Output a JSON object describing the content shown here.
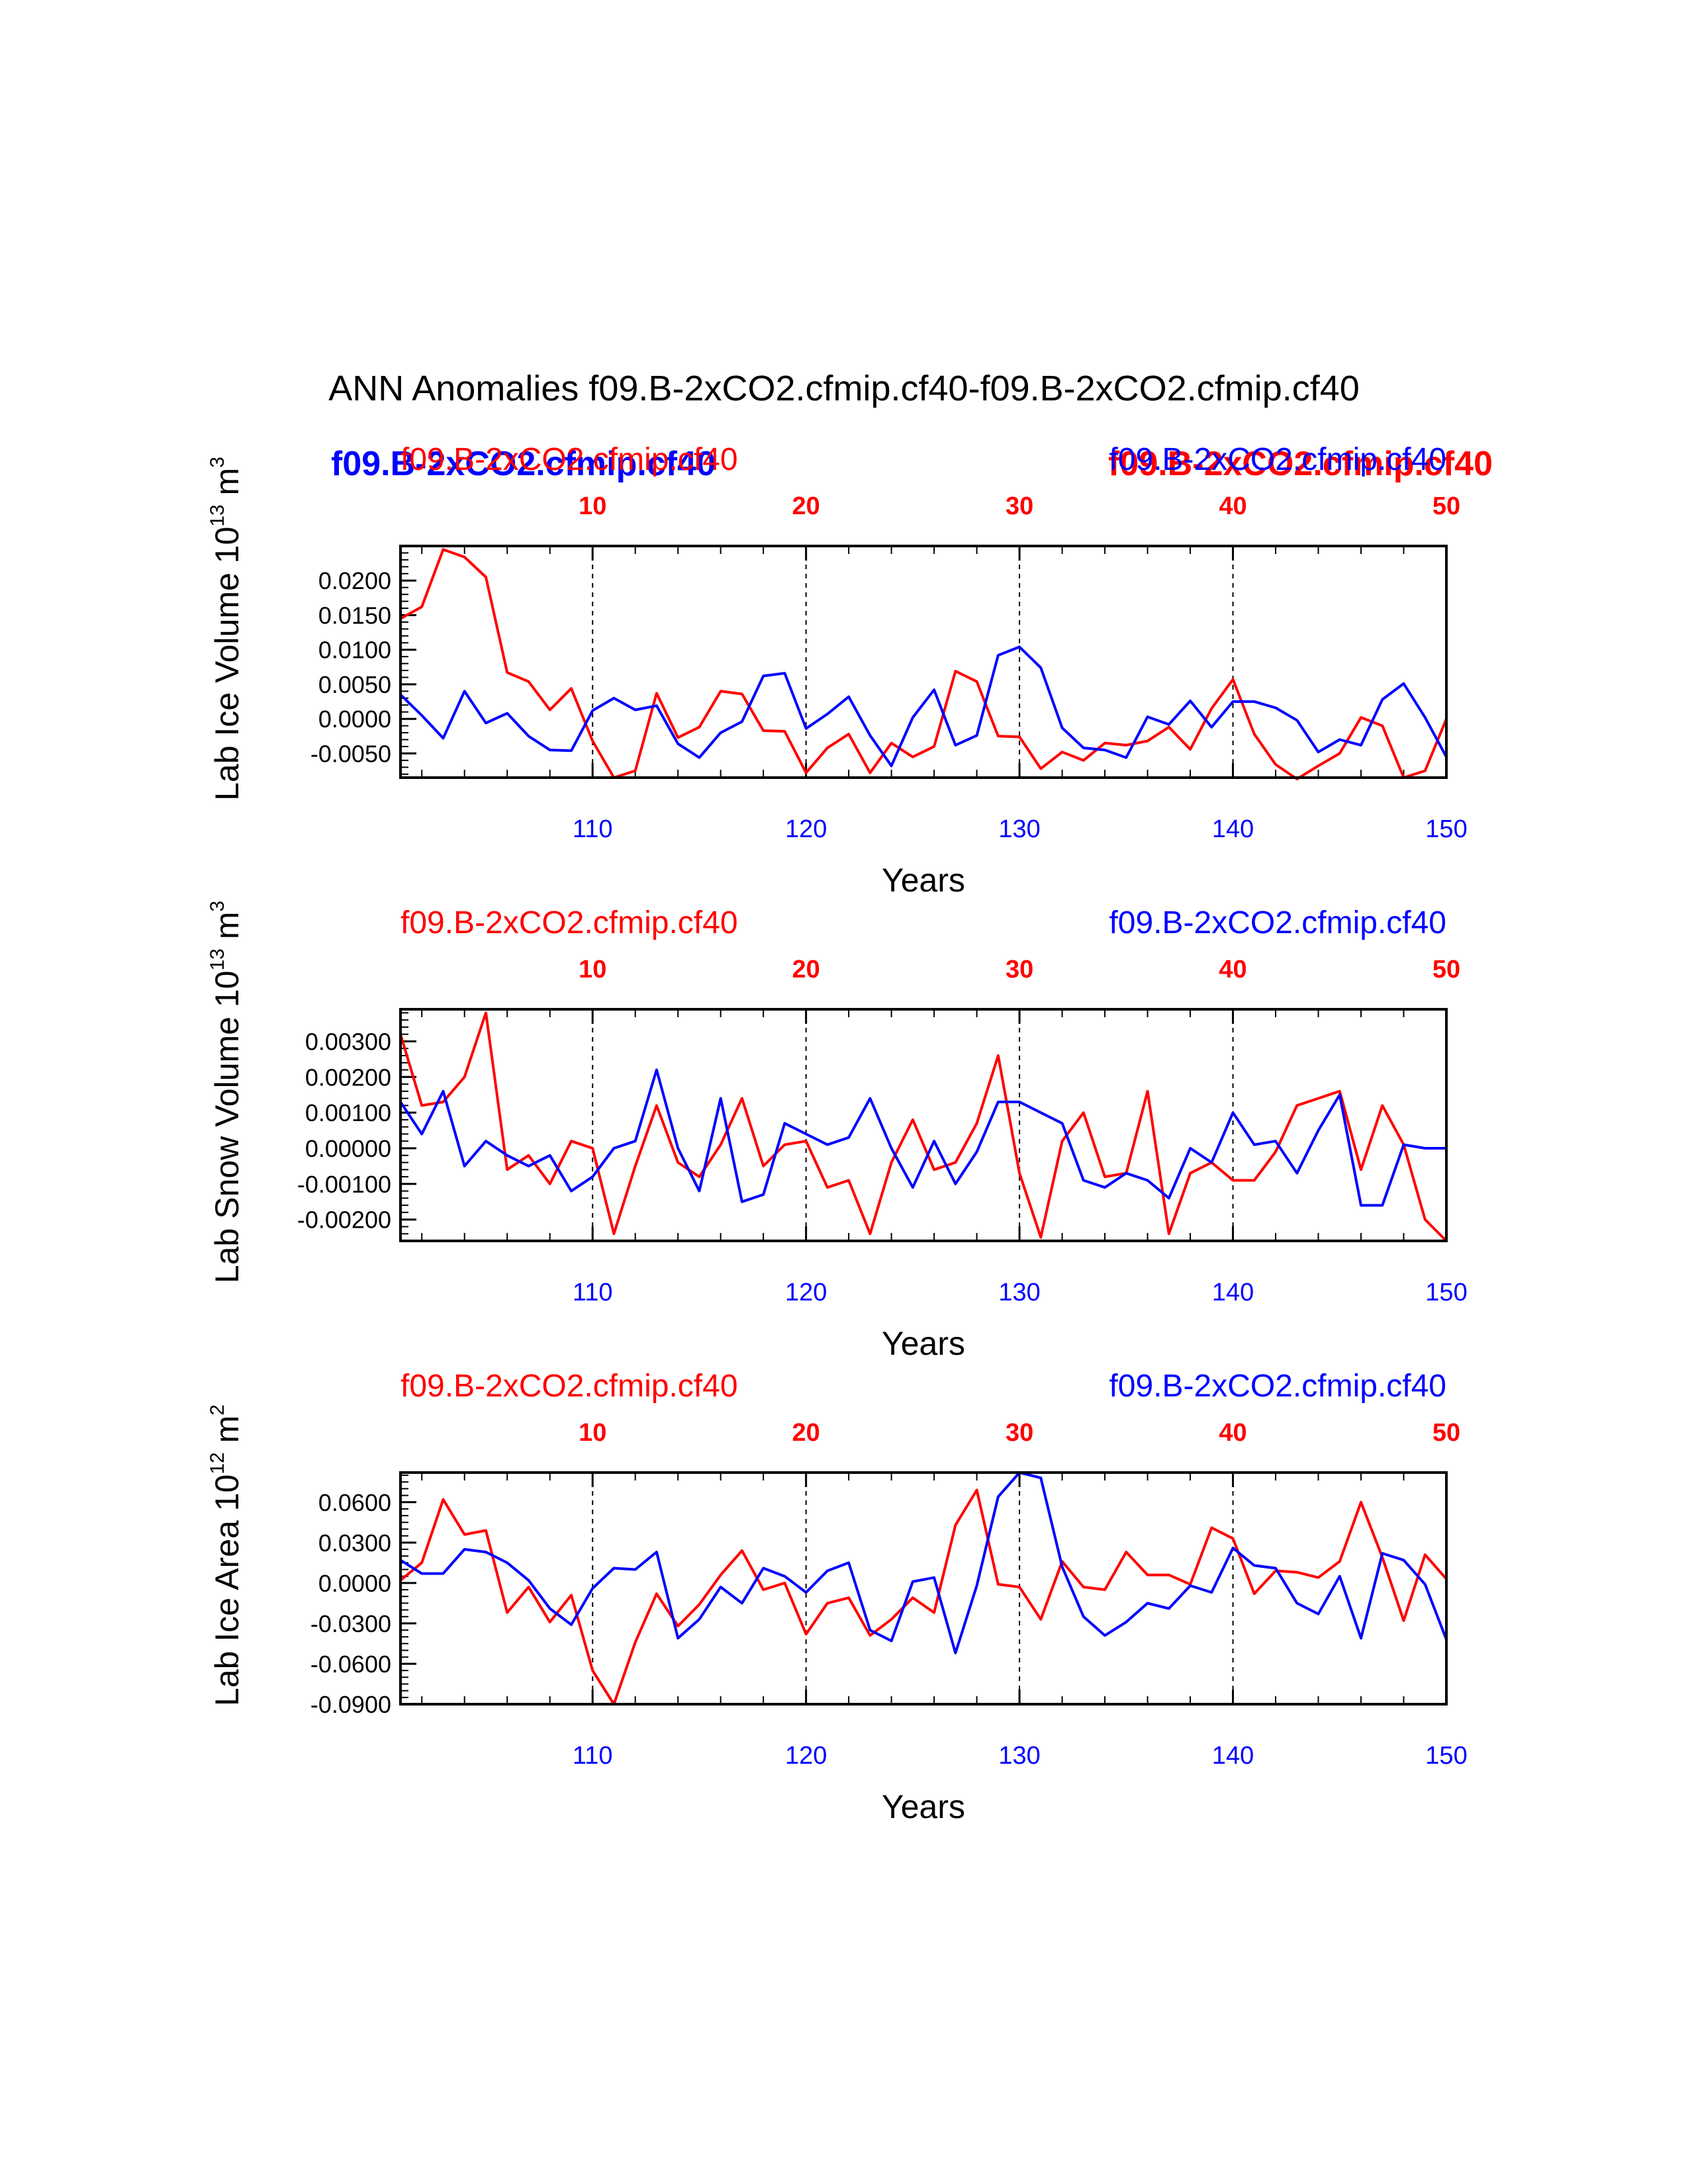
{
  "figure_title": "ANN Anomalies f09.B-2xCO2.cfmip.cf40-f09.B-2xCO2.cfmip.cf40",
  "colors": {
    "red": "#ff0000",
    "blue": "#0000ff",
    "axis": "#000000"
  },
  "header_bold": {
    "left": "f09.B-2xCO2.cfmip.cf40",
    "right": "f09.B-2xCO2.cfmip.cf40"
  },
  "chart_data": [
    {
      "type": "line",
      "ylabel": {
        "prefix": "Lab Ice Volume 10",
        "exp": "13",
        "unit": " m",
        "unit_exp": "3"
      },
      "xlabel": "Years",
      "case_left": "f09.B-2xCO2.cfmip.cf40",
      "case_right": "f09.B-2xCO2.cfmip.cf40",
      "top_axis": {
        "min": 1,
        "max": 50,
        "ticks": [
          "10",
          "20",
          "30",
          "40",
          "50"
        ]
      },
      "bottom_axis": {
        "min": 101,
        "max": 150,
        "ticks": [
          "110",
          "120",
          "130",
          "140",
          "150"
        ]
      },
      "gridlines_at_top": [
        10,
        20,
        30,
        40
      ],
      "ylim": [
        -0.0085,
        0.025
      ],
      "yticks": [
        -0.005,
        0.0,
        0.005,
        0.01,
        0.015,
        0.02
      ],
      "yticklabels": [
        "-0.0050",
        "0.0000",
        "0.0050",
        "0.0100",
        "0.0150",
        "0.0200"
      ],
      "yminor_step": 0.001,
      "series": [
        {
          "name": "f09.B-2xCO2.cfmip.cf40",
          "color": "red",
          "axis": "top",
          "values": [
            0.0145,
            0.0162,
            0.0245,
            0.0234,
            0.0205,
            0.0067,
            0.0054,
            0.0013,
            0.0044,
            -0.0032,
            -0.0085,
            -0.0075,
            0.0037,
            -0.0027,
            -0.0012,
            0.004,
            0.0036,
            -0.0017,
            -0.0018,
            -0.0078,
            -0.0042,
            -0.0022,
            -0.0078,
            -0.0035,
            -0.0055,
            -0.004,
            0.0069,
            0.0054,
            -0.0025,
            -0.0026,
            -0.0072,
            -0.0048,
            -0.006,
            -0.0035,
            -0.0038,
            -0.0032,
            -0.0012,
            -0.0044,
            0.0015,
            0.0057,
            -0.0022,
            -0.0066,
            -0.0087,
            -0.0068,
            -0.005,
            0.0002,
            -0.001,
            -0.0085,
            -0.0075,
            0.0
          ]
        },
        {
          "name": "f09.B-2xCO2.cfmip.cf40",
          "color": "blue",
          "axis": "bottom",
          "values": [
            0.0035,
            0.0005,
            -0.0028,
            0.004,
            -0.0006,
            0.0008,
            -0.0025,
            -0.0045,
            -0.0046,
            0.0012,
            0.003,
            0.0013,
            0.0019,
            -0.0036,
            -0.0056,
            -0.002,
            -0.0004,
            0.0062,
            0.0066,
            -0.0014,
            0.0007,
            0.0032,
            -0.0024,
            -0.0068,
            0.0002,
            0.0042,
            -0.0038,
            -0.0024,
            0.0092,
            0.0104,
            0.0074,
            -0.0013,
            -0.0042,
            -0.0045,
            -0.0056,
            0.0003,
            -0.0008,
            0.0026,
            -0.0012,
            0.0025,
            0.0025,
            0.0016,
            -0.0002,
            -0.0048,
            -0.003,
            -0.0038,
            0.0028,
            0.0051,
            0.0002,
            -0.0055
          ]
        }
      ]
    },
    {
      "type": "line",
      "ylabel": {
        "prefix": "Lab Snow Volume 10",
        "exp": "13",
        "unit": " m",
        "unit_exp": "3"
      },
      "xlabel": "Years",
      "case_left": "f09.B-2xCO2.cfmip.cf40",
      "case_right": "f09.B-2xCO2.cfmip.cf40",
      "top_axis": {
        "min": 1,
        "max": 50,
        "ticks": [
          "10",
          "20",
          "30",
          "40",
          "50"
        ]
      },
      "bottom_axis": {
        "min": 101,
        "max": 150,
        "ticks": [
          "110",
          "120",
          "130",
          "140",
          "150"
        ]
      },
      "gridlines_at_top": [
        10,
        20,
        30,
        40
      ],
      "ylim": [
        -0.0026,
        0.0039
      ],
      "yticks": [
        -0.002,
        -0.001,
        0.0,
        0.001,
        0.002,
        0.003
      ],
      "yticklabels": [
        "-0.00200",
        "-0.00100",
        "0.00000",
        "0.00100",
        "0.00200",
        "0.00300"
      ],
      "yminor_step": 0.0002,
      "series": [
        {
          "name": "f09.B-2xCO2.cfmip.cf40",
          "color": "red",
          "axis": "top",
          "values": [
            0.0032,
            0.0012,
            0.0013,
            0.002,
            0.0038,
            -0.0006,
            -0.0002,
            -0.001,
            0.0002,
            0.0,
            -0.0024,
            -0.0005,
            0.0012,
            -0.0004,
            -0.0008,
            0.0001,
            0.0014,
            -0.0005,
            0.0001,
            0.0002,
            -0.0011,
            -0.0009,
            -0.0024,
            -0.0004,
            0.0008,
            -0.0006,
            -0.0004,
            0.0007,
            0.0026,
            -0.0007,
            -0.0025,
            0.0002,
            0.001,
            -0.0008,
            -0.0007,
            0.0016,
            -0.0024,
            -0.0007,
            -0.0004,
            -0.0009,
            -0.0009,
            -0.0001,
            0.0012,
            0.0014,
            0.0016,
            -0.0006,
            0.0012,
            0.0001,
            -0.002,
            -0.0026
          ]
        },
        {
          "name": "f09.B-2xCO2.cfmip.cf40",
          "color": "blue",
          "axis": "bottom",
          "values": [
            0.0013,
            0.0004,
            0.0016,
            -0.0005,
            0.0002,
            -0.0002,
            -0.0005,
            -0.0002,
            -0.0012,
            -0.0008,
            0.0,
            0.0002,
            0.0022,
            0.0,
            -0.0012,
            0.0014,
            -0.0015,
            -0.0013,
            0.0007,
            0.0004,
            0.0001,
            0.0003,
            0.0014,
            0.0,
            -0.0011,
            0.0002,
            -0.001,
            -0.0001,
            0.0013,
            0.0013,
            0.001,
            0.0007,
            -0.0009,
            -0.0011,
            -0.0007,
            -0.0009,
            -0.0014,
            0.0,
            -0.0004,
            0.001,
            0.0001,
            0.0002,
            -0.0007,
            0.0005,
            0.0015,
            -0.0016,
            -0.0016,
            0.0001,
            0.0,
            -0.0
          ]
        }
      ]
    },
    {
      "type": "line",
      "ylabel": {
        "prefix": "Lab Ice Area 10",
        "exp": "12",
        "unit": " m",
        "unit_exp": "2"
      },
      "xlabel": "Years",
      "case_left": "f09.B-2xCO2.cfmip.cf40",
      "case_right": "f09.B-2xCO2.cfmip.cf40",
      "top_axis": {
        "min": 1,
        "max": 50,
        "ticks": [
          "10",
          "20",
          "30",
          "40",
          "50"
        ]
      },
      "bottom_axis": {
        "min": 101,
        "max": 150,
        "ticks": [
          "110",
          "120",
          "130",
          "140",
          "150"
        ]
      },
      "gridlines_at_top": [
        10,
        20,
        30,
        40
      ],
      "ylim": [
        -0.09,
        0.082
      ],
      "yticks": [
        -0.09,
        -0.06,
        -0.03,
        0.0,
        0.03,
        0.06
      ],
      "yticklabels": [
        "-0.0900",
        "-0.0600",
        "-0.0300",
        "0.0000",
        "0.0300",
        "0.0600"
      ],
      "yminor_step": 0.005,
      "series": [
        {
          "name": "f09.B-2xCO2.cfmip.cf40",
          "color": "red",
          "axis": "top",
          "values": [
            0.002,
            0.015,
            0.062,
            0.036,
            0.039,
            -0.022,
            -0.003,
            -0.029,
            -0.009,
            -0.065,
            -0.09,
            -0.044,
            -0.008,
            -0.032,
            -0.016,
            0.006,
            0.024,
            -0.005,
            0.0,
            -0.038,
            -0.015,
            -0.011,
            -0.039,
            -0.027,
            -0.011,
            -0.022,
            0.043,
            0.069,
            -0.001,
            -0.003,
            -0.027,
            0.016,
            -0.003,
            -0.005,
            0.023,
            0.006,
            0.006,
            -0.001,
            0.041,
            0.033,
            -0.008,
            0.009,
            0.008,
            0.004,
            0.016,
            0.06,
            0.019,
            -0.028,
            0.021,
            0.003
          ]
        },
        {
          "name": "f09.B-2xCO2.cfmip.cf40",
          "color": "blue",
          "axis": "bottom",
          "values": [
            0.017,
            0.007,
            0.007,
            0.025,
            0.023,
            0.015,
            0.002,
            -0.019,
            -0.031,
            -0.004,
            0.011,
            0.01,
            0.023,
            -0.041,
            -0.027,
            -0.003,
            -0.015,
            0.011,
            0.005,
            -0.007,
            0.009,
            0.015,
            -0.035,
            -0.043,
            0.001,
            0.004,
            -0.052,
            -0.002,
            0.064,
            0.082,
            0.078,
            0.012,
            -0.025,
            -0.039,
            -0.029,
            -0.015,
            -0.019,
            -0.002,
            -0.007,
            0.026,
            0.013,
            0.011,
            -0.015,
            -0.023,
            0.005,
            -0.041,
            0.022,
            0.017,
            -0.001,
            -0.042
          ]
        }
      ]
    }
  ]
}
